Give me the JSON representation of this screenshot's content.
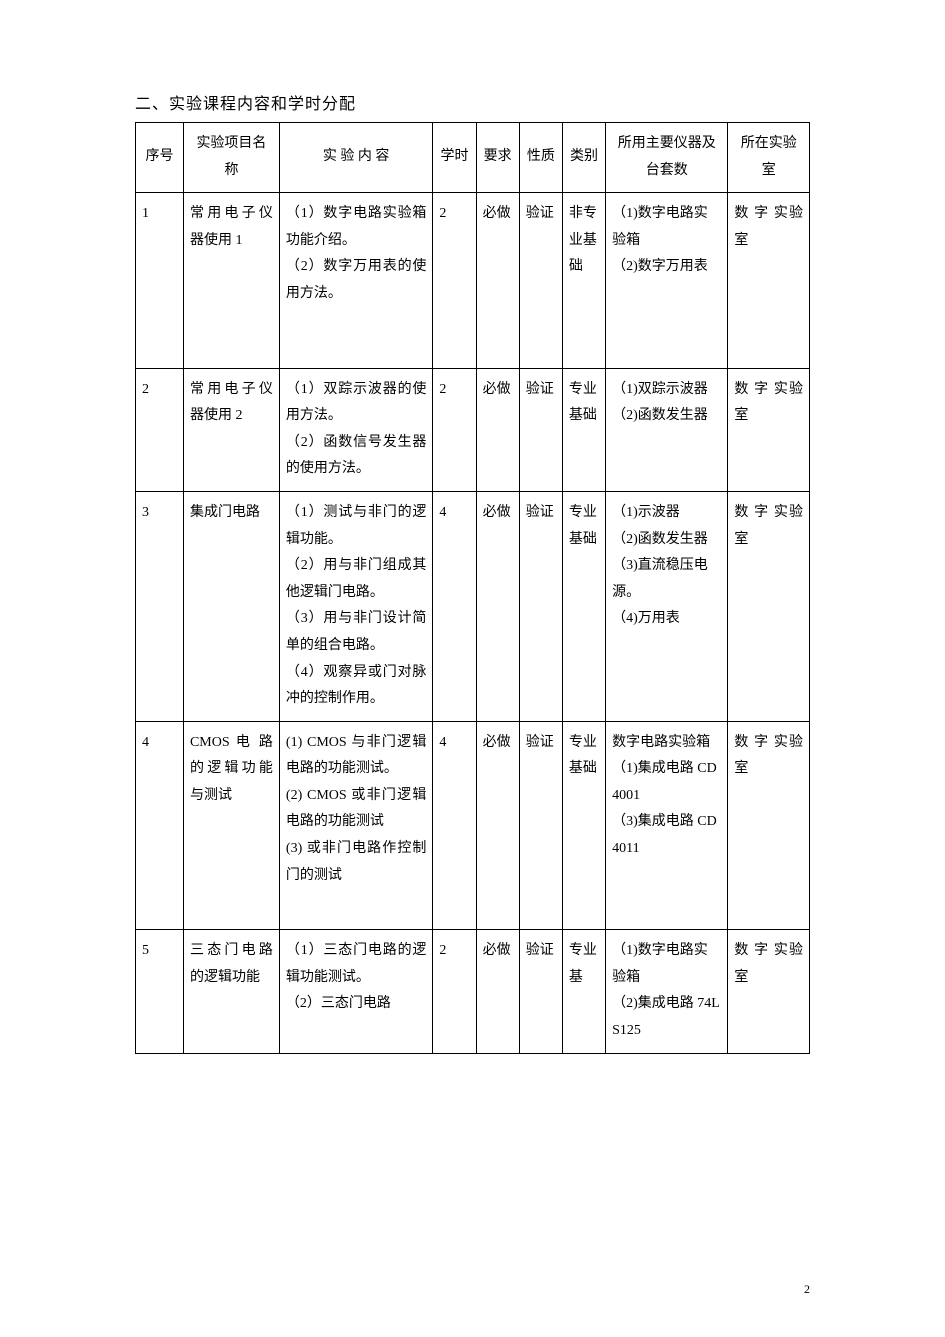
{
  "section_title": "二、实验课程内容和学时分配",
  "columns": {
    "num": "序号",
    "name": "实验项目名称",
    "content": "实 验 内 容",
    "hours": "学时",
    "req": "要求",
    "nature": "性质",
    "cat": "类别",
    "equip": "所用主要仪器及台套数",
    "lab": "所在实验室"
  },
  "rows": [
    {
      "num": "1",
      "name": "常用电子仪器使用 1",
      "content": "（1）数字电路实验箱功能介绍。\n（2）数字万用表的使用方法。",
      "hours": "2",
      "req": "必做",
      "nature": "验证",
      "cat": "非专业基础",
      "equip": "（1)数字电路实验箱\n（2)数字万用表",
      "lab": "数 字 实验室"
    },
    {
      "num": "2",
      "name": "常用电子仪器使用 2",
      "content": "（1）双踪示波器的使用方法。\n（2）函数信号发生器的使用方法。",
      "hours": "2",
      "req": "必做",
      "nature": "验证",
      "cat": "专业基础",
      "equip": "（1)双踪示波器\n（2)函数发生器",
      "lab": "数 字 实验室"
    },
    {
      "num": "3",
      "name": "集成门电路",
      "content": "（1）测试与非门的逻辑功能。\n（2）用与非门组成其他逻辑门电路。\n（3）用与非门设计简单的组合电路。\n（4）观察异或门对脉冲的控制作用。",
      "hours": "4",
      "req": "必做",
      "nature": "验证",
      "cat": "专业基础",
      "equip": "（1)示波器\n（2)函数发生器\n（3)直流稳压电源。\n（4)万用表",
      "lab": "数 字 实验室"
    },
    {
      "num": "4",
      "name": "CMOS 电 路的逻辑功能与测试",
      "content": "(1) CMOS 与非门逻辑电路的功能测试。\n(2) CMOS 或非门逻辑电路的功能测试\n(3) 或非门电路作控制门的测试",
      "hours": "4",
      "req": "必做",
      "nature": "验证",
      "cat": "专业基础",
      "equip": "数字电路实验箱\n（1)集成电路 CD4001\n（3)集成电路 CD4011",
      "lab": "数 字 实验室"
    },
    {
      "num": "5",
      "name": "三态门电路的逻辑功能",
      "content": "（1）三态门电路的逻辑功能测试。\n（2）三态门电路",
      "hours": "2",
      "req": "必做",
      "nature": "验证",
      "cat": "专业基",
      "equip": "（1)数字电路实验箱\n（2)集成电路 74LS125",
      "lab": "数 字 实验室"
    }
  ],
  "page_number": "2"
}
